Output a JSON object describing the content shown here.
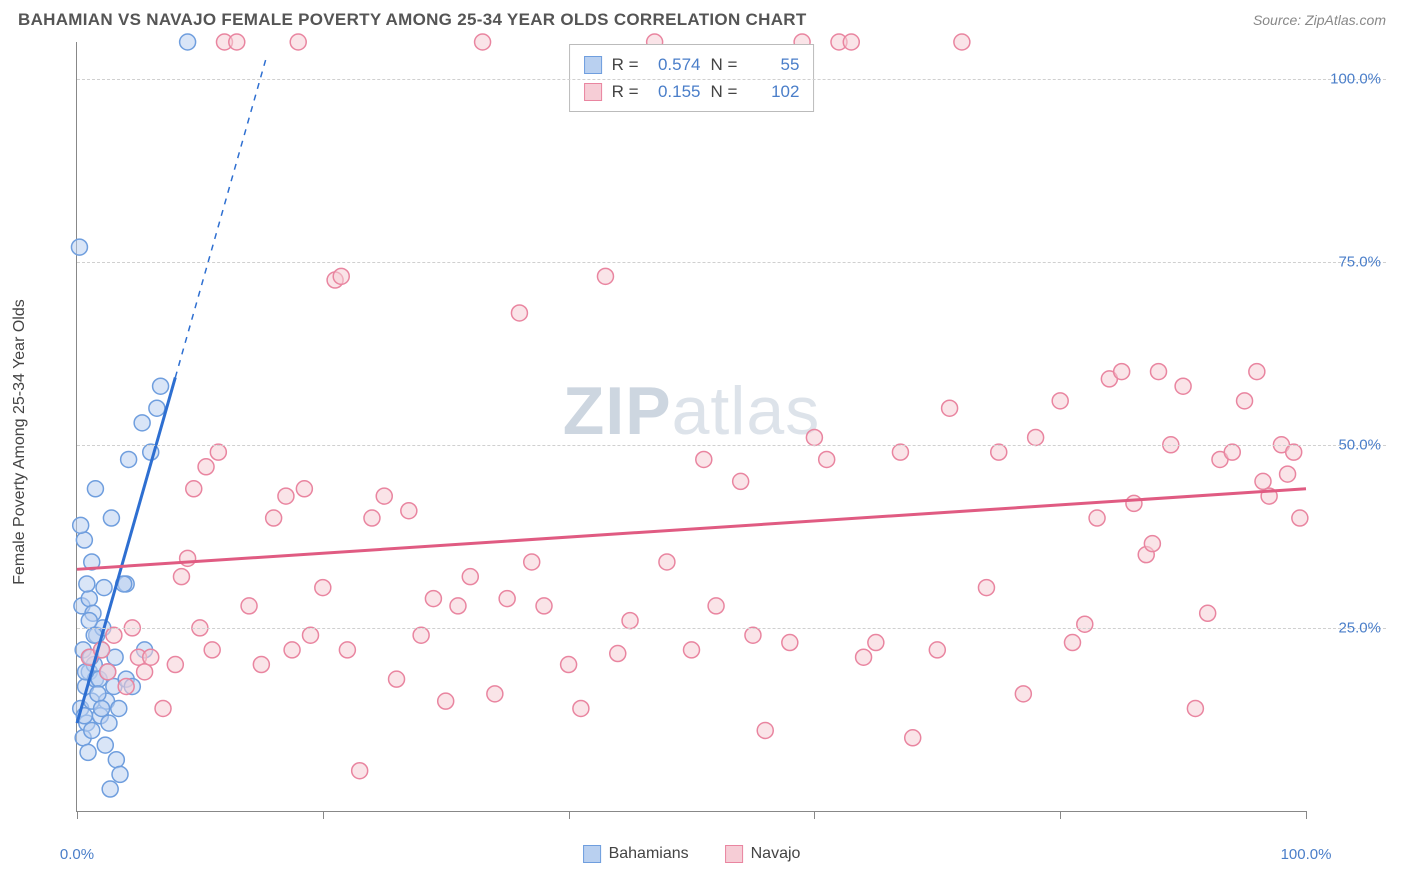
{
  "title": "BAHAMIAN VS NAVAJO FEMALE POVERTY AMONG 25-34 YEAR OLDS CORRELATION CHART",
  "source_label": "Source: ",
  "source_name": "ZipAtlas.com",
  "y_axis_label": "Female Poverty Among 25-34 Year Olds",
  "watermark_bold": "ZIP",
  "watermark_rest": "atlas",
  "chart": {
    "type": "scatter",
    "xlim": [
      0,
      100
    ],
    "ylim": [
      0,
      105
    ],
    "y_ticks": [
      25,
      50,
      75,
      100
    ],
    "y_tick_labels": [
      "25.0%",
      "50.0%",
      "75.0%",
      "100.0%"
    ],
    "x_ticks": [
      0,
      20,
      40,
      60,
      80,
      100
    ],
    "x_tick_labels_shown": {
      "0": "0.0%",
      "100": "100.0%"
    },
    "background_color": "#ffffff",
    "grid_color": "#d0d0d0",
    "axis_color": "#888888",
    "marker_radius": 8,
    "marker_stroke_width": 1.5,
    "tick_label_color": "#4a7ec9",
    "series": [
      {
        "name": "Bahamians",
        "color_fill": "#b9d0f0",
        "color_stroke": "#6f9ede",
        "trend": {
          "slope": 5.9,
          "intercept": 12,
          "solid_xmax": 8,
          "dash_xmax": 15.4,
          "width": 3,
          "color": "#2e6fd1"
        },
        "R": 0.574,
        "N": 55,
        "points": [
          [
            0.3,
            14
          ],
          [
            0.5,
            10
          ],
          [
            0.7,
            17
          ],
          [
            0.8,
            12
          ],
          [
            1.0,
            19
          ],
          [
            0.5,
            22
          ],
          [
            1.2,
            15
          ],
          [
            1.4,
            20
          ],
          [
            1.5,
            18
          ],
          [
            1.6,
            24
          ],
          [
            0.4,
            28
          ],
          [
            1.0,
            29
          ],
          [
            0.8,
            31
          ],
          [
            1.2,
            34
          ],
          [
            0.6,
            37
          ],
          [
            2.0,
            22
          ],
          [
            2.1,
            25
          ],
          [
            1.3,
            27
          ],
          [
            1.8,
            18
          ],
          [
            2.4,
            15
          ],
          [
            2.5,
            19
          ],
          [
            3.0,
            17
          ],
          [
            3.1,
            21
          ],
          [
            2.2,
            30.5
          ],
          [
            0.3,
            39
          ],
          [
            2.8,
            40
          ],
          [
            4.0,
            31
          ],
          [
            1.5,
            44
          ],
          [
            4.2,
            48
          ],
          [
            6.0,
            49
          ],
          [
            5.3,
            53
          ],
          [
            6.5,
            55
          ],
          [
            6.8,
            58
          ],
          [
            0.2,
            77
          ],
          [
            3.8,
            31
          ],
          [
            1.9,
            13
          ],
          [
            2.3,
            9
          ],
          [
            3.2,
            7
          ],
          [
            2.7,
            3
          ],
          [
            3.5,
            5
          ],
          [
            0.9,
            8
          ],
          [
            4.0,
            18
          ],
          [
            4.5,
            17
          ],
          [
            5.5,
            22
          ],
          [
            1.1,
            21
          ],
          [
            1.7,
            16
          ],
          [
            0.6,
            13
          ],
          [
            1.2,
            11
          ],
          [
            9.0,
            105
          ],
          [
            2.0,
            14
          ],
          [
            2.6,
            12
          ],
          [
            3.4,
            14
          ],
          [
            1.4,
            24
          ],
          [
            0.7,
            19
          ],
          [
            1.0,
            26
          ]
        ]
      },
      {
        "name": "Navajo",
        "color_fill": "#f6cdd6",
        "color_stroke": "#e985a0",
        "trend": {
          "slope": 0.11,
          "intercept": 33,
          "solid_xmax": 100,
          "dash_xmax": 100,
          "width": 3,
          "color": "#e05b82"
        },
        "R": 0.155,
        "N": 102,
        "points": [
          [
            1,
            21
          ],
          [
            2,
            22
          ],
          [
            2.5,
            19
          ],
          [
            3,
            24
          ],
          [
            4,
            17
          ],
          [
            4.5,
            25
          ],
          [
            5,
            21
          ],
          [
            5.5,
            19
          ],
          [
            6,
            21
          ],
          [
            7,
            14
          ],
          [
            8,
            20
          ],
          [
            8.5,
            32
          ],
          [
            9,
            34.5
          ],
          [
            9.5,
            44
          ],
          [
            10,
            25
          ],
          [
            10.5,
            47
          ],
          [
            11,
            22
          ],
          [
            11.5,
            49
          ],
          [
            12,
            105
          ],
          [
            13,
            105
          ],
          [
            14,
            28
          ],
          [
            15,
            20
          ],
          [
            16,
            40
          ],
          [
            17,
            43
          ],
          [
            17.5,
            22
          ],
          [
            18,
            105
          ],
          [
            18.5,
            44
          ],
          [
            19,
            24
          ],
          [
            20,
            30.5
          ],
          [
            21,
            72.5
          ],
          [
            21.5,
            73
          ],
          [
            22,
            22
          ],
          [
            23,
            5.5
          ],
          [
            24,
            40
          ],
          [
            25,
            43
          ],
          [
            26,
            18
          ],
          [
            27,
            41
          ],
          [
            28,
            24
          ],
          [
            29,
            29
          ],
          [
            30,
            15
          ],
          [
            31,
            28
          ],
          [
            32,
            32
          ],
          [
            33,
            105
          ],
          [
            34,
            16
          ],
          [
            35,
            29
          ],
          [
            36,
            68
          ],
          [
            37,
            34
          ],
          [
            38,
            28
          ],
          [
            40,
            20
          ],
          [
            41,
            14
          ],
          [
            43,
            73
          ],
          [
            44,
            21.5
          ],
          [
            45,
            26
          ],
          [
            47,
            105
          ],
          [
            48,
            34
          ],
          [
            50,
            22
          ],
          [
            51,
            48
          ],
          [
            52,
            28
          ],
          [
            54,
            45
          ],
          [
            55,
            24
          ],
          [
            56,
            11
          ],
          [
            58,
            23
          ],
          [
            59,
            105
          ],
          [
            60,
            51
          ],
          [
            61,
            48
          ],
          [
            62,
            105
          ],
          [
            63,
            105
          ],
          [
            64,
            21
          ],
          [
            65,
            23
          ],
          [
            67,
            49
          ],
          [
            68,
            10
          ],
          [
            70,
            22
          ],
          [
            71,
            55
          ],
          [
            72,
            105
          ],
          [
            74,
            30.5
          ],
          [
            75,
            49
          ],
          [
            77,
            16
          ],
          [
            78,
            51
          ],
          [
            80,
            56
          ],
          [
            81,
            23
          ],
          [
            82,
            25.5
          ],
          [
            83,
            40
          ],
          [
            84,
            59
          ],
          [
            85,
            60
          ],
          [
            86,
            42
          ],
          [
            87,
            35
          ],
          [
            87.5,
            36.5
          ],
          [
            88,
            60
          ],
          [
            89,
            50
          ],
          [
            90,
            58
          ],
          [
            91,
            14
          ],
          [
            92,
            27
          ],
          [
            93,
            48
          ],
          [
            94,
            49
          ],
          [
            95,
            56
          ],
          [
            96,
            60
          ],
          [
            96.5,
            45
          ],
          [
            97,
            43
          ],
          [
            98,
            50
          ],
          [
            98.5,
            46
          ],
          [
            99,
            49
          ],
          [
            99.5,
            40
          ]
        ]
      }
    ]
  },
  "stats_box": {
    "rows": [
      {
        "swatch_fill": "#b9d0f0",
        "swatch_stroke": "#6f9ede",
        "R_label": "R =",
        "R_val": "0.574",
        "N_label": "N =",
        "N_val": "55"
      },
      {
        "swatch_fill": "#f6cdd6",
        "swatch_stroke": "#e985a0",
        "R_label": "R =",
        "R_val": "0.155",
        "N_label": "N =",
        "N_val": "102"
      }
    ]
  },
  "legend": [
    {
      "swatch_fill": "#b9d0f0",
      "swatch_stroke": "#6f9ede",
      "label": "Bahamians"
    },
    {
      "swatch_fill": "#f6cdd6",
      "swatch_stroke": "#e985a0",
      "label": "Navajo"
    }
  ]
}
